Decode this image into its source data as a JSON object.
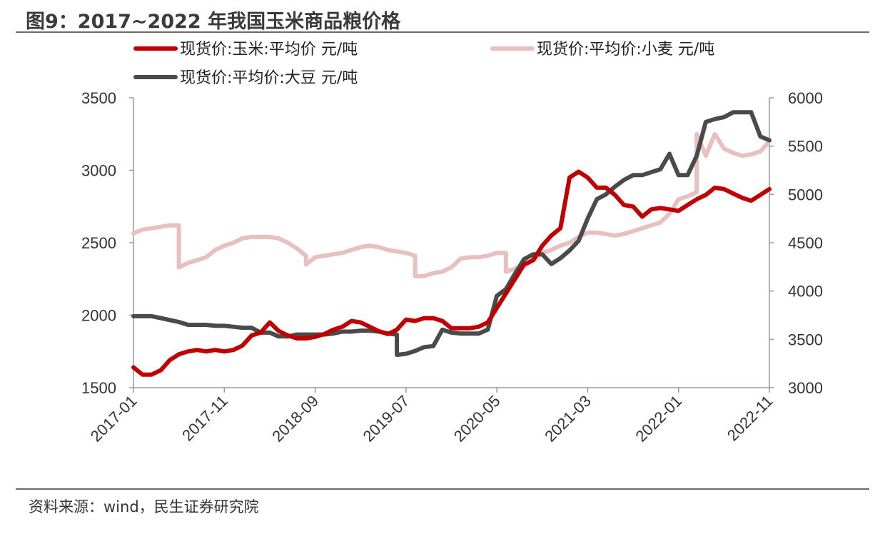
{
  "figure": {
    "title": "图9：2017~2022 年我国玉米商品粮价格",
    "source": "资料来源：wind，民生证券研究院"
  },
  "chart_data": {
    "type": "line",
    "x_ticks": [
      "2017-01",
      "2017-11",
      "2018-09",
      "2019-07",
      "2020-05",
      "2021-03",
      "2022-01",
      "2022-11"
    ],
    "xlim": [
      "2017-01",
      "2022-11"
    ],
    "y_left": {
      "ticks": [
        "1500",
        "2000",
        "2500",
        "3000",
        "3500"
      ],
      "lim": [
        1500,
        3500
      ]
    },
    "y_right": {
      "ticks": [
        "3000",
        "3500",
        "4000",
        "4500",
        "5000",
        "5500",
        "6000"
      ],
      "lim": [
        3000,
        6000
      ]
    },
    "legend_position": "top",
    "series": [
      {
        "name": "现货价:平均价:小麦 元/吨",
        "axis": "left",
        "color": "#e8c0c0",
        "points": [
          [
            "2017-01",
            2565
          ],
          [
            "2017-02",
            2590
          ],
          [
            "2017-03",
            2600
          ],
          [
            "2017-04",
            2610
          ],
          [
            "2017-05",
            2620
          ],
          [
            "2017-06",
            2620
          ],
          [
            "2017-06",
            2330
          ],
          [
            "2017-07",
            2360
          ],
          [
            "2017-08",
            2380
          ],
          [
            "2017-09",
            2400
          ],
          [
            "2017-10",
            2450
          ],
          [
            "2017-11",
            2480
          ],
          [
            "2017-12",
            2500
          ],
          [
            "2018-01",
            2530
          ],
          [
            "2018-02",
            2540
          ],
          [
            "2018-04",
            2540
          ],
          [
            "2018-05",
            2530
          ],
          [
            "2018-06",
            2500
          ],
          [
            "2018-07",
            2460
          ],
          [
            "2018-08",
            2410
          ],
          [
            "2018-08",
            2350
          ],
          [
            "2018-09",
            2400
          ],
          [
            "2018-10",
            2410
          ],
          [
            "2018-11",
            2420
          ],
          [
            "2018-12",
            2430
          ],
          [
            "2019-01",
            2450
          ],
          [
            "2019-02",
            2470
          ],
          [
            "2019-03",
            2480
          ],
          [
            "2019-04",
            2470
          ],
          [
            "2019-05",
            2450
          ],
          [
            "2019-06",
            2440
          ],
          [
            "2019-07",
            2430
          ],
          [
            "2019-08",
            2410
          ],
          [
            "2019-08",
            2270
          ],
          [
            "2019-09",
            2270
          ],
          [
            "2019-10",
            2290
          ],
          [
            "2019-11",
            2300
          ],
          [
            "2019-12",
            2330
          ],
          [
            "2020-01",
            2390
          ],
          [
            "2020-02",
            2400
          ],
          [
            "2020-03",
            2400
          ],
          [
            "2020-04",
            2410
          ],
          [
            "2020-05",
            2430
          ],
          [
            "2020-06",
            2430
          ],
          [
            "2020-06",
            2300
          ],
          [
            "2020-07",
            2320
          ],
          [
            "2020-08",
            2340
          ],
          [
            "2020-09",
            2380
          ],
          [
            "2020-10",
            2430
          ],
          [
            "2020-11",
            2450
          ],
          [
            "2020-12",
            2480
          ],
          [
            "2021-01",
            2500
          ],
          [
            "2021-02",
            2540
          ],
          [
            "2021-03",
            2570
          ],
          [
            "2021-04",
            2570
          ],
          [
            "2021-05",
            2560
          ],
          [
            "2021-06",
            2550
          ],
          [
            "2021-07",
            2560
          ],
          [
            "2021-08",
            2580
          ],
          [
            "2021-09",
            2600
          ],
          [
            "2021-10",
            2620
          ],
          [
            "2021-11",
            2640
          ],
          [
            "2021-12",
            2700
          ],
          [
            "2022-01",
            2800
          ],
          [
            "2022-02",
            2820
          ],
          [
            "2022-03",
            2850
          ],
          [
            "2022-03",
            3250
          ],
          [
            "2022-04",
            3100
          ],
          [
            "2022-05",
            3250
          ],
          [
            "2022-06",
            3150
          ],
          [
            "2022-07",
            3120
          ],
          [
            "2022-08",
            3100
          ],
          [
            "2022-09",
            3110
          ],
          [
            "2022-10",
            3130
          ],
          [
            "2022-11",
            3200
          ]
        ]
      },
      {
        "name": "现货价:平均价:大豆 元/吨",
        "axis": "right",
        "color": "#4a4a4a",
        "points": [
          [
            "2017-01",
            3740
          ],
          [
            "2017-02",
            3740
          ],
          [
            "2017-03",
            3740
          ],
          [
            "2017-04",
            3720
          ],
          [
            "2017-05",
            3700
          ],
          [
            "2017-06",
            3680
          ],
          [
            "2017-07",
            3650
          ],
          [
            "2017-08",
            3650
          ],
          [
            "2017-09",
            3650
          ],
          [
            "2017-10",
            3640
          ],
          [
            "2017-11",
            3640
          ],
          [
            "2017-12",
            3630
          ],
          [
            "2018-01",
            3620
          ],
          [
            "2018-02",
            3620
          ],
          [
            "2018-03",
            3570
          ],
          [
            "2018-04",
            3570
          ],
          [
            "2018-05",
            3530
          ],
          [
            "2018-06",
            3530
          ],
          [
            "2018-07",
            3550
          ],
          [
            "2018-08",
            3550
          ],
          [
            "2018-09",
            3550
          ],
          [
            "2018-10",
            3550
          ],
          [
            "2018-11",
            3560
          ],
          [
            "2018-12",
            3580
          ],
          [
            "2019-01",
            3580
          ],
          [
            "2019-02",
            3590
          ],
          [
            "2019-03",
            3590
          ],
          [
            "2019-04",
            3580
          ],
          [
            "2019-05",
            3560
          ],
          [
            "2019-06",
            3550
          ],
          [
            "2019-06",
            3340
          ],
          [
            "2019-07",
            3350
          ],
          [
            "2019-08",
            3380
          ],
          [
            "2019-09",
            3420
          ],
          [
            "2019-10",
            3430
          ],
          [
            "2019-11",
            3600
          ],
          [
            "2019-12",
            3570
          ],
          [
            "2020-01",
            3560
          ],
          [
            "2020-02",
            3560
          ],
          [
            "2020-03",
            3560
          ],
          [
            "2020-04",
            3600
          ],
          [
            "2020-05",
            3950
          ],
          [
            "2020-06",
            4020
          ],
          [
            "2020-07",
            4180
          ],
          [
            "2020-08",
            4330
          ],
          [
            "2020-09",
            4380
          ],
          [
            "2020-10",
            4380
          ],
          [
            "2020-11",
            4280
          ],
          [
            "2020-12",
            4340
          ],
          [
            "2021-01",
            4420
          ],
          [
            "2021-02",
            4520
          ],
          [
            "2021-03",
            4750
          ],
          [
            "2021-04",
            4950
          ],
          [
            "2021-05",
            5000
          ],
          [
            "2021-06",
            5080
          ],
          [
            "2021-07",
            5150
          ],
          [
            "2021-08",
            5200
          ],
          [
            "2021-09",
            5200
          ],
          [
            "2021-10",
            5230
          ],
          [
            "2021-11",
            5260
          ],
          [
            "2021-12",
            5420
          ],
          [
            "2022-01",
            5200
          ],
          [
            "2022-02",
            5200
          ],
          [
            "2022-03",
            5400
          ],
          [
            "2022-04",
            5750
          ],
          [
            "2022-05",
            5780
          ],
          [
            "2022-06",
            5800
          ],
          [
            "2022-07",
            5850
          ],
          [
            "2022-08",
            5850
          ],
          [
            "2022-09",
            5850
          ],
          [
            "2022-10",
            5600
          ],
          [
            "2022-11",
            5560
          ]
        ]
      },
      {
        "name": "现货价:玉米:平均价 元/吨",
        "axis": "left",
        "color": "#c00000",
        "points": [
          [
            "2017-01",
            1640
          ],
          [
            "2017-02",
            1590
          ],
          [
            "2017-03",
            1590
          ],
          [
            "2017-04",
            1620
          ],
          [
            "2017-05",
            1690
          ],
          [
            "2017-06",
            1730
          ],
          [
            "2017-07",
            1750
          ],
          [
            "2017-08",
            1760
          ],
          [
            "2017-09",
            1750
          ],
          [
            "2017-10",
            1760
          ],
          [
            "2017-11",
            1750
          ],
          [
            "2017-12",
            1760
          ],
          [
            "2018-01",
            1790
          ],
          [
            "2018-02",
            1860
          ],
          [
            "2018-03",
            1880
          ],
          [
            "2018-04",
            1950
          ],
          [
            "2018-05",
            1890
          ],
          [
            "2018-06",
            1860
          ],
          [
            "2018-07",
            1840
          ],
          [
            "2018-08",
            1840
          ],
          [
            "2018-09",
            1850
          ],
          [
            "2018-10",
            1870
          ],
          [
            "2018-11",
            1900
          ],
          [
            "2018-12",
            1920
          ],
          [
            "2019-01",
            1960
          ],
          [
            "2019-02",
            1950
          ],
          [
            "2019-03",
            1920
          ],
          [
            "2019-04",
            1890
          ],
          [
            "2019-05",
            1870
          ],
          [
            "2019-06",
            1900
          ],
          [
            "2019-07",
            1970
          ],
          [
            "2019-08",
            1960
          ],
          [
            "2019-09",
            1980
          ],
          [
            "2019-10",
            1980
          ],
          [
            "2019-11",
            1960
          ],
          [
            "2019-12",
            1910
          ],
          [
            "2020-01",
            1910
          ],
          [
            "2020-02",
            1910
          ],
          [
            "2020-03",
            1920
          ],
          [
            "2020-04",
            1950
          ],
          [
            "2020-05",
            2050
          ],
          [
            "2020-06",
            2150
          ],
          [
            "2020-07",
            2250
          ],
          [
            "2020-08",
            2350
          ],
          [
            "2020-09",
            2380
          ],
          [
            "2020-10",
            2480
          ],
          [
            "2020-11",
            2550
          ],
          [
            "2020-12",
            2600
          ],
          [
            "2021-01",
            2950
          ],
          [
            "2021-02",
            2990
          ],
          [
            "2021-03",
            2950
          ],
          [
            "2021-04",
            2880
          ],
          [
            "2021-05",
            2880
          ],
          [
            "2021-06",
            2830
          ],
          [
            "2021-07",
            2760
          ],
          [
            "2021-08",
            2750
          ],
          [
            "2021-09",
            2680
          ],
          [
            "2021-10",
            2730
          ],
          [
            "2021-11",
            2740
          ],
          [
            "2021-12",
            2730
          ],
          [
            "2022-01",
            2720
          ],
          [
            "2022-02",
            2760
          ],
          [
            "2022-03",
            2800
          ],
          [
            "2022-04",
            2830
          ],
          [
            "2022-05",
            2880
          ],
          [
            "2022-06",
            2870
          ],
          [
            "2022-07",
            2840
          ],
          [
            "2022-08",
            2810
          ],
          [
            "2022-09",
            2790
          ],
          [
            "2022-10",
            2830
          ],
          [
            "2022-11",
            2870
          ]
        ]
      }
    ]
  }
}
